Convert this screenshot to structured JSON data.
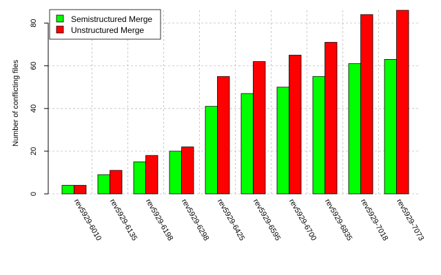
{
  "chart_data": {
    "type": "bar",
    "title": "",
    "xlabel": "",
    "ylabel": "Number of conflicting files",
    "ylim": [
      0,
      86
    ],
    "yticks": [
      0,
      20,
      40,
      60,
      80
    ],
    "grid": true,
    "legend": "top-left",
    "categories": [
      "rev5929-6010",
      "rev5929-6135",
      "rev5929-6198",
      "rev5929-6298",
      "rev5929-6425",
      "rev5929-6595",
      "rev5929-6700",
      "rev5929-6835",
      "rev5929-7018",
      "rev5929-7073"
    ],
    "series": [
      {
        "name": "Semistructured Merge",
        "color": "#00ff00",
        "values": [
          4,
          9,
          15,
          20,
          41,
          47,
          50,
          55,
          61,
          63
        ]
      },
      {
        "name": "Unstructured Merge",
        "color": "#ff0000",
        "values": [
          4,
          11,
          18,
          22,
          55,
          62,
          65,
          71,
          84,
          86
        ]
      }
    ]
  }
}
